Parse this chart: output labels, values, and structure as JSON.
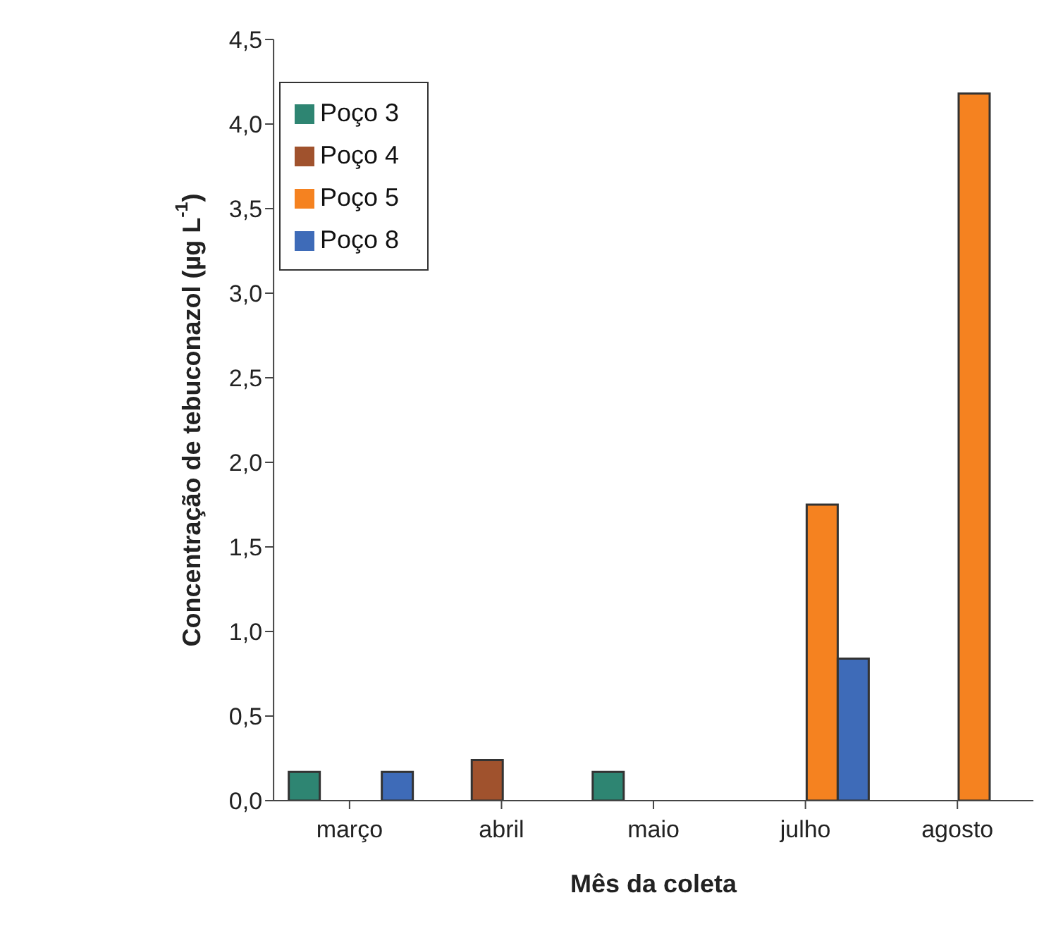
{
  "chart_data": {
    "type": "bar",
    "xlabel": "Mês da coleta",
    "ylabel": "Concentração de tebuconazol (µg L$^{-1}$)",
    "categories": [
      "março",
      "abril",
      "maio",
      "julho",
      "agosto"
    ],
    "series": [
      {
        "name": "Poço 3",
        "color": "#2e8572",
        "values": [
          0.17,
          null,
          0.17,
          null,
          null
        ]
      },
      {
        "name": "Poço 4",
        "color": "#a0522d",
        "values": [
          null,
          0.24,
          null,
          null,
          null
        ]
      },
      {
        "name": "Poço 5",
        "color": "#f58220",
        "values": [
          null,
          null,
          null,
          1.75,
          4.18
        ]
      },
      {
        "name": "Poço 8",
        "color": "#3e6bb8",
        "values": [
          0.17,
          null,
          null,
          0.84,
          null
        ]
      }
    ],
    "ylim": [
      0,
      4.5
    ],
    "yticks": [
      {
        "value": 0,
        "label": "0,0"
      },
      {
        "value": 0.5,
        "label": "0,5"
      },
      {
        "value": 1,
        "label": "1,0"
      },
      {
        "value": 1.5,
        "label": "1,5"
      },
      {
        "value": 2,
        "label": "2,0"
      },
      {
        "value": 2.5,
        "label": "2,5"
      },
      {
        "value": 3,
        "label": "3,0"
      },
      {
        "value": 3.5,
        "label": "3,5"
      },
      {
        "value": 4,
        "label": "4,0"
      },
      {
        "value": 4.5,
        "label": "4,5"
      }
    ],
    "grid": false,
    "legend": "top left"
  }
}
